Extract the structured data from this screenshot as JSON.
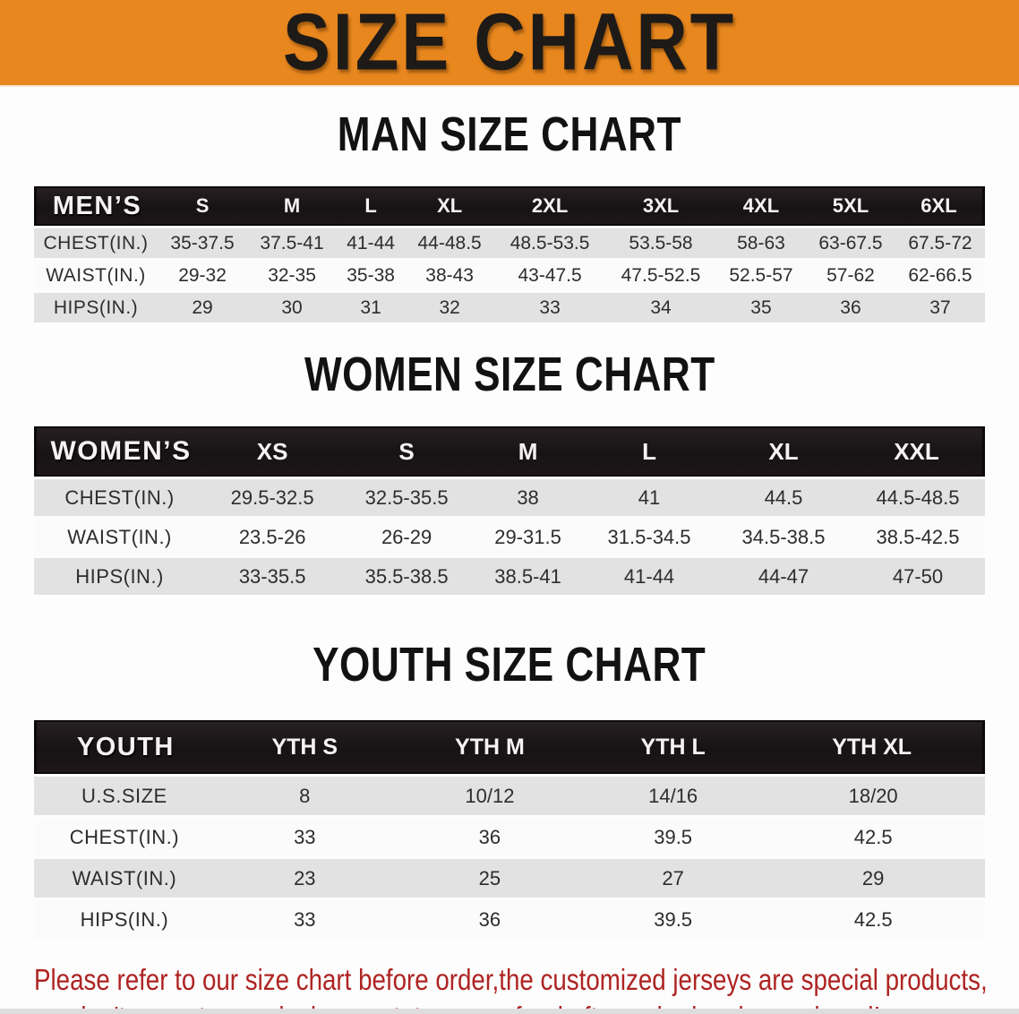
{
  "banner": {
    "title": "SIZE CHART"
  },
  "colors": {
    "banner_bg": "#E8871E",
    "banner_text": "#1E1A17",
    "table_header_bg": "#171214",
    "table_header_text": "#F4F2F2",
    "row_stripe_gray": "#E2E2E2",
    "row_stripe_white": "#FBFBFB",
    "disclaimer_red": "#AE2422"
  },
  "sections": [
    {
      "title": "MAN SIZE CHART",
      "table": {
        "header": {
          "label": "MEN’S",
          "columns": [
            "S",
            "M",
            "L",
            "XL",
            "2XL",
            "3XL",
            "4XL",
            "5XL",
            "6XL"
          ]
        },
        "rows": [
          {
            "label": "CHEST(IN.)",
            "values": [
              "35-37.5",
              "37.5-41",
              "41-44",
              "44-48.5",
              "48.5-53.5",
              "53.5-58",
              "58-63",
              "63-67.5",
              "67.5-72"
            ]
          },
          {
            "label": "WAIST(IN.)",
            "values": [
              "29-32",
              "32-35",
              "35-38",
              "38-43",
              "43-47.5",
              "47.5-52.5",
              "52.5-57",
              "57-62",
              "62-66.5"
            ]
          },
          {
            "label": "HIPS(IN.)",
            "values": [
              "29",
              "30",
              "31",
              "32",
              "33",
              "34",
              "35",
              "36",
              "37"
            ]
          }
        ]
      }
    },
    {
      "title": "WOMEN SIZE CHART",
      "table": {
        "header": {
          "label": "WOMEN’S",
          "columns": [
            "XS",
            "S",
            "M",
            "L",
            "XL",
            "XXL"
          ]
        },
        "rows": [
          {
            "label": "CHEST(IN.)",
            "values": [
              "29.5-32.5",
              "32.5-35.5",
              "38",
              "41",
              "44.5",
              "44.5-48.5"
            ]
          },
          {
            "label": "WAIST(IN.)",
            "values": [
              "23.5-26",
              "26-29",
              "29-31.5",
              "31.5-34.5",
              "34.5-38.5",
              "38.5-42.5"
            ]
          },
          {
            "label": "HIPS(IN.)",
            "values": [
              "33-35.5",
              "35.5-38.5",
              "38.5-41",
              "41-44",
              "44-47",
              "47-50"
            ]
          }
        ]
      }
    },
    {
      "title": "YOUTH SIZE CHART",
      "table": {
        "header": {
          "label": "YOUTH",
          "columns": [
            "YTH S",
            "YTH M",
            "YTH L",
            "YTH XL"
          ]
        },
        "rows": [
          {
            "label": "U.S.SIZE",
            "values": [
              "8",
              "10/12",
              "14/16",
              "18/20"
            ]
          },
          {
            "label": "CHEST(IN.)",
            "values": [
              "33",
              "36",
              "39.5",
              "42.5"
            ]
          },
          {
            "label": "WAIST(IN.)",
            "values": [
              "23",
              "25",
              "27",
              "29"
            ]
          },
          {
            "label": "HIPS(IN.)",
            "values": [
              "33",
              "36",
              "39.5",
              "42.5"
            ]
          }
        ]
      }
    }
  ],
  "disclaimer": {
    "line1": "Please refer to our size chart before order,the customized jerseys are special products,",
    "line2": "we don't accept cancel, change, teturn or refund after order has been placed!"
  }
}
